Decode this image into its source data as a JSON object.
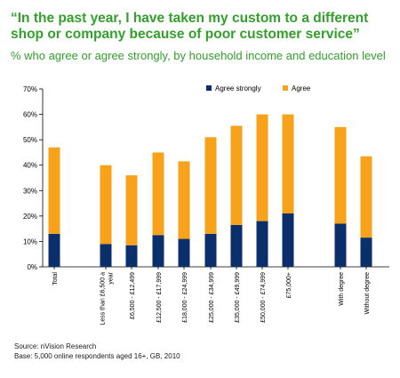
{
  "page": {
    "title": "“In the past year, I have taken my custom to a different shop or company because of poor customer service”",
    "title_line1": "“In the past year, I have taken my custom to a different",
    "title_line2": "shop or company because of poor customer service”",
    "subtitle": "% who agree or agree strongly, by household income and education level",
    "source": "Source: nVision Research",
    "base": "Base: 5,000 online respondents aged 16+, GB, 2010",
    "colors": {
      "title": "#33a02c",
      "agree_strongly": "#0b2f6b",
      "agree": "#f7a21a"
    }
  },
  "chart_data": {
    "type": "bar",
    "stacked": true,
    "categories": [
      "Total",
      "Less than £6,500 a year",
      "£6,500 - £12,499",
      "£12,500 - £17,999",
      "£18,000 - £24,999",
      "£25,000 - £34,999",
      "£35,000 - £49,999",
      "£50,000 - £74,999",
      "£75,000+",
      "With degree",
      "Without degree"
    ],
    "series": [
      {
        "name": "Agree strongly",
        "color": "#0b2f6b",
        "values": [
          13,
          9,
          8.5,
          12.5,
          11,
          13,
          16.5,
          18,
          21,
          17,
          11.5
        ]
      },
      {
        "name": "Agree",
        "color": "#f7a21a",
        "values": [
          34,
          31,
          27.5,
          32.5,
          30.5,
          38,
          39,
          42,
          39,
          38,
          32
        ]
      }
    ],
    "title": "",
    "xlabel": "",
    "ylabel": "",
    "ylim": [
      0,
      70
    ],
    "yticks": [
      "0%",
      "10%",
      "20%",
      "30%",
      "40%",
      "50%",
      "60%",
      "70%"
    ],
    "grid": false,
    "legend_position": "top-center"
  }
}
